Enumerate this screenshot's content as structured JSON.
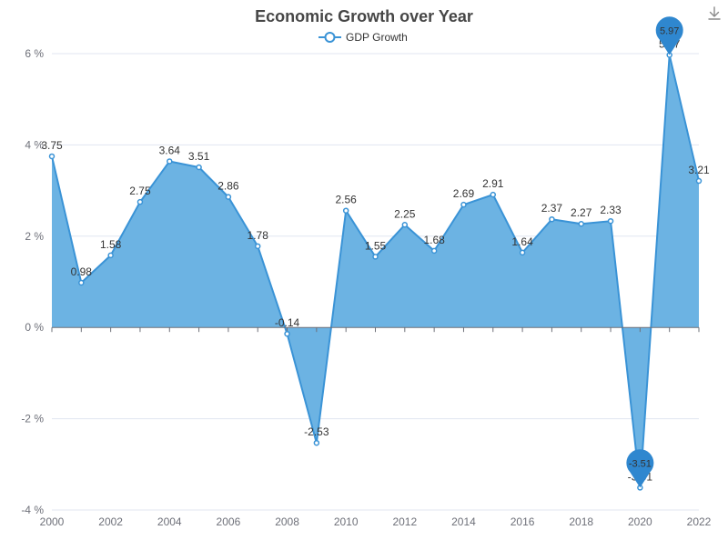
{
  "chart_data": {
    "type": "area",
    "title": "Economic Growth over Year",
    "xlabel": "",
    "ylabel": "",
    "y_unit_suffix": " %",
    "x": [
      2000,
      2001,
      2002,
      2003,
      2004,
      2005,
      2006,
      2007,
      2008,
      2009,
      2010,
      2011,
      2012,
      2013,
      2014,
      2015,
      2016,
      2017,
      2018,
      2019,
      2020,
      2021,
      2022
    ],
    "x_tick_labels": [
      "2000",
      "2002",
      "2004",
      "2006",
      "2008",
      "2010",
      "2012",
      "2014",
      "2016",
      "2018",
      "2020",
      "2022"
    ],
    "y_tick_labels": [
      "-4 %",
      "-2 %",
      "0 %",
      "2 %",
      "4 %",
      "6 %"
    ],
    "y_ticks": [
      -4,
      -2,
      0,
      2,
      4,
      6
    ],
    "xlim": [
      2000,
      2022
    ],
    "ylim": [
      -4,
      6
    ],
    "grid": true,
    "legend_position": "top-center",
    "series": [
      {
        "name": "GDP Growth",
        "values": [
          3.75,
          0.98,
          1.58,
          2.75,
          3.64,
          3.51,
          2.86,
          1.78,
          -0.14,
          -2.53,
          2.56,
          1.55,
          2.25,
          1.68,
          2.69,
          2.91,
          1.64,
          2.37,
          2.27,
          2.33,
          -3.51,
          5.97,
          3.21
        ],
        "labels": [
          "3.75",
          "0.98",
          "1.58",
          "2.75",
          "3.64",
          "3.51",
          "2.86",
          "1.78",
          "-0.14",
          "-2.53",
          "2.56",
          "1.55",
          "2.25",
          "1.68",
          "2.69",
          "2.91",
          "1.64",
          "2.37",
          "2.27",
          "2.33",
          "-3.51",
          "5.97",
          "3.21"
        ]
      }
    ],
    "mark_points": [
      {
        "type": "max",
        "x": 2021,
        "value": 5.97,
        "label": "5.97"
      },
      {
        "type": "min",
        "x": 2020,
        "value": -3.51,
        "label": "-3.51"
      }
    ],
    "colors": {
      "line": "#3a93d6",
      "area": "#6cb3e3",
      "pin": "#2f87cf",
      "grid": "#e0e6f1",
      "axis": "#6e7079"
    }
  },
  "toolbox": {
    "icon": "download-icon"
  }
}
